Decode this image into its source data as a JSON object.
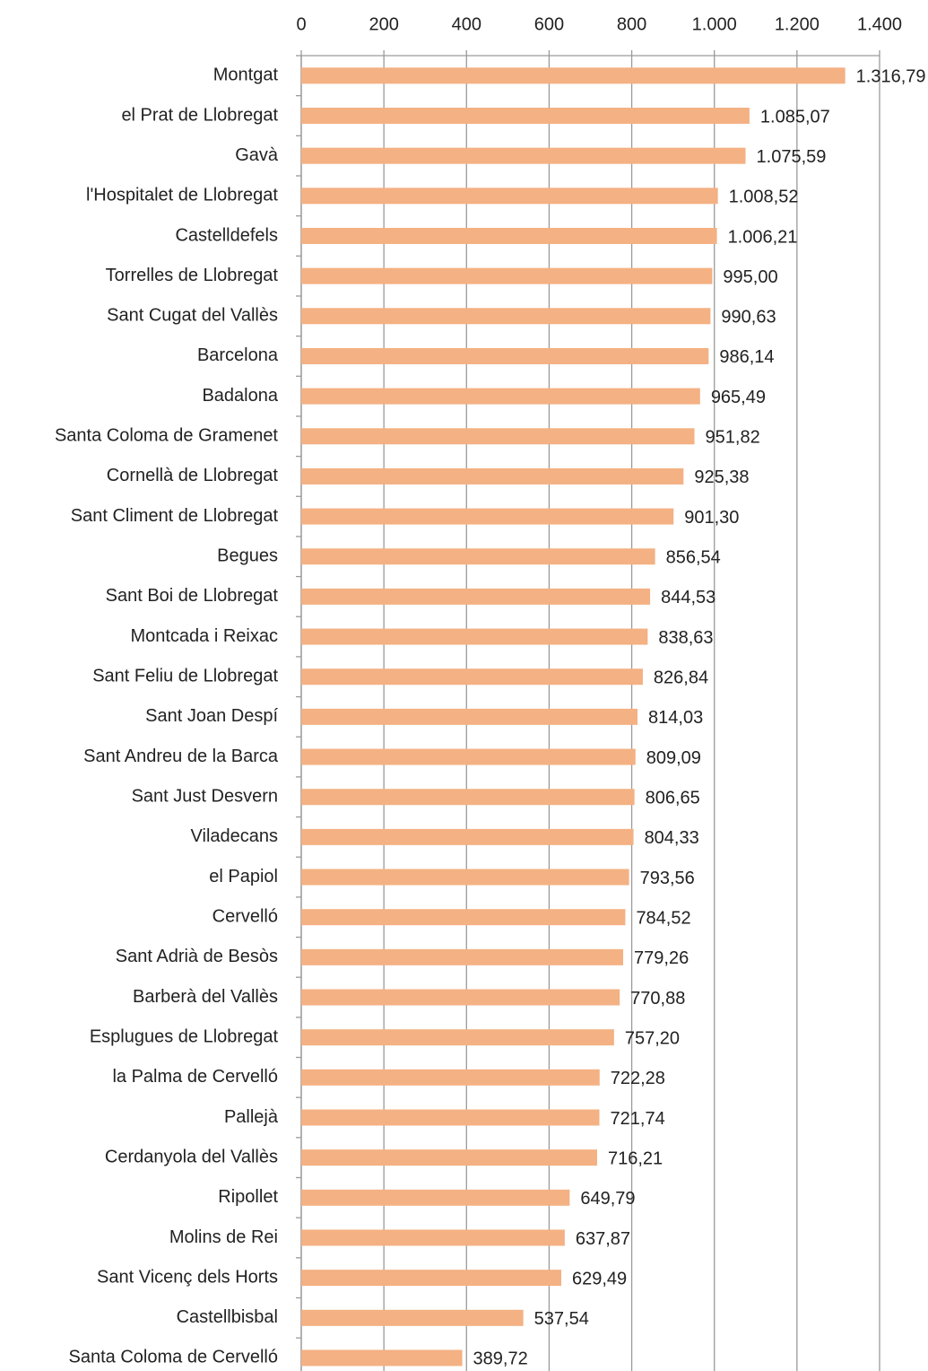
{
  "chart_data": {
    "type": "bar",
    "orientation": "horizontal",
    "color": "#f4b183",
    "grid": true,
    "categories": [
      "Montgat",
      "el Prat de Llobregat",
      "Gavà",
      "l'Hospitalet de Llobregat",
      "Castelldefels",
      "Torrelles de Llobregat",
      "Sant Cugat del Vallès",
      "Barcelona",
      "Badalona",
      "Santa Coloma de Gramenet",
      "Cornellà de Llobregat",
      "Sant Climent de Llobregat",
      "Begues",
      "Sant Boi de Llobregat",
      "Montcada i Reixac",
      "Sant Feliu de Llobregat",
      "Sant Joan Despí",
      "Sant Andreu de la Barca",
      "Sant Just Desvern",
      "Viladecans",
      "el Papiol",
      "Cervelló",
      "Sant Adrià de Besòs",
      "Barberà del Vallès",
      "Esplugues de Llobregat",
      "la Palma de Cervelló",
      "Pallejà",
      "Cerdanyola del Vallès",
      "Ripollet",
      "Molins de Rei",
      "Sant Vicenç dels Horts",
      "Castellbisbal",
      "Santa Coloma de Cervelló"
    ],
    "values": [
      1316.79,
      1085.07,
      1075.59,
      1008.52,
      1006.21,
      995.0,
      990.63,
      986.14,
      965.49,
      951.82,
      925.38,
      901.3,
      856.54,
      844.53,
      838.63,
      826.84,
      814.03,
      809.09,
      806.65,
      804.33,
      793.56,
      784.52,
      779.26,
      770.88,
      757.2,
      722.28,
      721.74,
      716.21,
      649.79,
      637.87,
      629.49,
      537.54,
      389.72
    ],
    "value_labels": [
      "1.316,79",
      "1.085,07",
      "1.075,59",
      "1.008,52",
      "1.006,21",
      "995,00",
      "990,63",
      "986,14",
      "965,49",
      "951,82",
      "925,38",
      "901,30",
      "856,54",
      "844,53",
      "838,63",
      "826,84",
      "814,03",
      "809,09",
      "806,65",
      "804,33",
      "793,56",
      "784,52",
      "779,26",
      "770,88",
      "757,20",
      "722,28",
      "721,74",
      "716,21",
      "649,79",
      "637,87",
      "629,49",
      "537,54",
      "389,72"
    ],
    "xlim": [
      0,
      1400
    ],
    "xticks": [
      0,
      200,
      400,
      600,
      800,
      {
        "value": 1000,
        "label": "1.000"
      },
      {
        "value": 1200,
        "label": "1.200"
      },
      {
        "value": 1400,
        "label": "1.400"
      }
    ]
  }
}
